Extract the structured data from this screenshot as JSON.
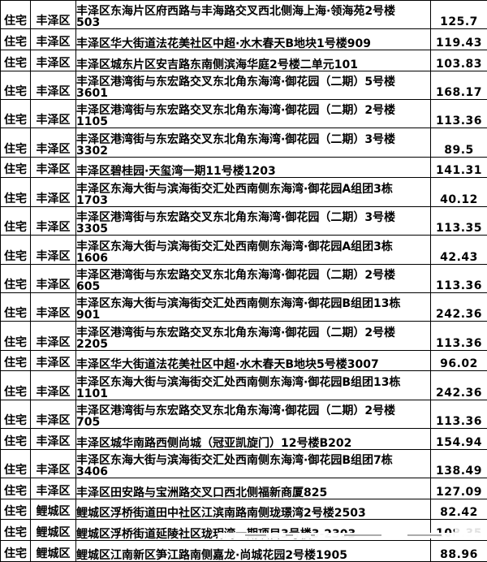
{
  "colors": {
    "background": "#ffffff",
    "border": "#000000",
    "text": "#000000",
    "watermark_dash": "#8f8f8f"
  },
  "table": {
    "rows": [
      {
        "type": "住宅",
        "district": "丰泽区",
        "address_line1": "丰泽区东海片区府西路与丰海路交叉西北侧海上海·领海苑2号楼",
        "address_line2": "503",
        "area": "125.7"
      },
      {
        "type": "住宅",
        "district": "丰泽区",
        "address_line1": "丰泽区华大街道法花美社区中超·水木春天B地块1号楼909",
        "address_line2": "",
        "area": "119.43"
      },
      {
        "type": "住宅",
        "district": "丰泽区",
        "address_line1": "丰泽区城东片区安吉路东南侧滨海华庭2号楼二单元101",
        "address_line2": "",
        "area": "103.83"
      },
      {
        "type": "住宅",
        "district": "丰泽区",
        "address_line1": "丰泽区港湾街与东宏路交叉东北角东海湾·御花园（二期）5号楼",
        "address_line2": "3601",
        "area": "168.17"
      },
      {
        "type": "住宅",
        "district": "丰泽区",
        "address_line1": "丰泽区港湾街与东宏路交叉东北角东海湾·御花园（二期）2号楼",
        "address_line2": "1105",
        "area": "113.36"
      },
      {
        "type": "住宅",
        "district": "丰泽区",
        "address_line1": "丰泽区港湾街与东宏路交叉东北角东海湾·御花园（二期）3号楼",
        "address_line2": "3302",
        "area": "89.5"
      },
      {
        "type": "住宅",
        "district": "丰泽区",
        "address_line1": "丰泽区碧桂园·天玺湾一期11号楼1203",
        "address_line2": "",
        "area": "141.31"
      },
      {
        "type": "住宅",
        "district": "丰泽区",
        "address_line1": "丰泽区东海大街与滨海街交汇处西南侧东海湾·御花园A组团3栋",
        "address_line2": "1703",
        "area": "40.12"
      },
      {
        "type": "住宅",
        "district": "丰泽区",
        "address_line1": "丰泽区港湾街与东宏路交叉东北角东海湾·御花园（二期）3号楼",
        "address_line2": "3305",
        "area": "113.35"
      },
      {
        "type": "住宅",
        "district": "丰泽区",
        "address_line1": "丰泽区东海大街与滨海街交汇处西南侧东海湾·御花园A组团3栋",
        "address_line2": "1606",
        "area": "42.43"
      },
      {
        "type": "住宅",
        "district": "丰泽区",
        "address_line1": "丰泽区港湾街与东宏路交叉东北角东海湾·御花园（二期）2号楼",
        "address_line2": "605",
        "area": "113.36"
      },
      {
        "type": "住宅",
        "district": "丰泽区",
        "address_line1": "丰泽区东海大街与滨海街交汇处西南侧东海湾·御花园B组团13栋",
        "address_line2": "901",
        "area": "242.36"
      },
      {
        "type": "住宅",
        "district": "丰泽区",
        "address_line1": "丰泽区港湾街与东宏路交叉东北角东海湾·御花园（二期）2号楼",
        "address_line2": "2205",
        "area": "113.36"
      },
      {
        "type": "住宅",
        "district": "丰泽区",
        "address_line1": "丰泽区华大街道法花美社区中超·水木春天B地块5号楼3007",
        "address_line2": "",
        "area": "96.02"
      },
      {
        "type": "住宅",
        "district": "丰泽区",
        "address_line1": "丰泽区东海大街与滨海街交汇处西南侧东海湾·御花园B组团13栋",
        "address_line2": "1101",
        "area": "242.36"
      },
      {
        "type": "住宅",
        "district": "丰泽区",
        "address_line1": "丰泽区港湾街与东宏路交叉东北角东海湾·御花园（二期）2号楼",
        "address_line2": "705",
        "area": "113.36"
      },
      {
        "type": "住宅",
        "district": "丰泽区",
        "address_line1": "丰泽区城华南路西侧尚城（冠亚凯旋门）12号楼B202",
        "address_line2": "",
        "area": "154.94"
      },
      {
        "type": "住宅",
        "district": "丰泽区",
        "address_line1": "丰泽区东海大街与滨海街交汇处西南侧东海湾·御花园B组团7栋",
        "address_line2": "3406",
        "area": "138.49"
      },
      {
        "type": "住宅",
        "district": "丰泽区",
        "address_line1": "丰泽区田安路与宝洲路交叉口西北侧福新商厦825",
        "address_line2": "",
        "area": "127.09"
      },
      {
        "type": "住宅",
        "district": "鲤城区",
        "address_line1": "鲤城区浮桥街道田中社区江滨南路南侧珑璟湾2号楼2503",
        "address_line2": "",
        "area": "82.42"
      },
      {
        "type": "住宅",
        "district": "鲤城区",
        "address_line1": "鲤城区浮桥街道延陵社区珑玥湾一期项目3号楼3-2303",
        "address_line2": "",
        "area": "108.35"
      },
      {
        "type": "住宅",
        "district": "鲤城区",
        "address_line1": "鲤城区江南新区笋江路南侧嘉龙·尚城花园2号楼1905",
        "address_line2": "",
        "area": "88.96"
      }
    ]
  }
}
